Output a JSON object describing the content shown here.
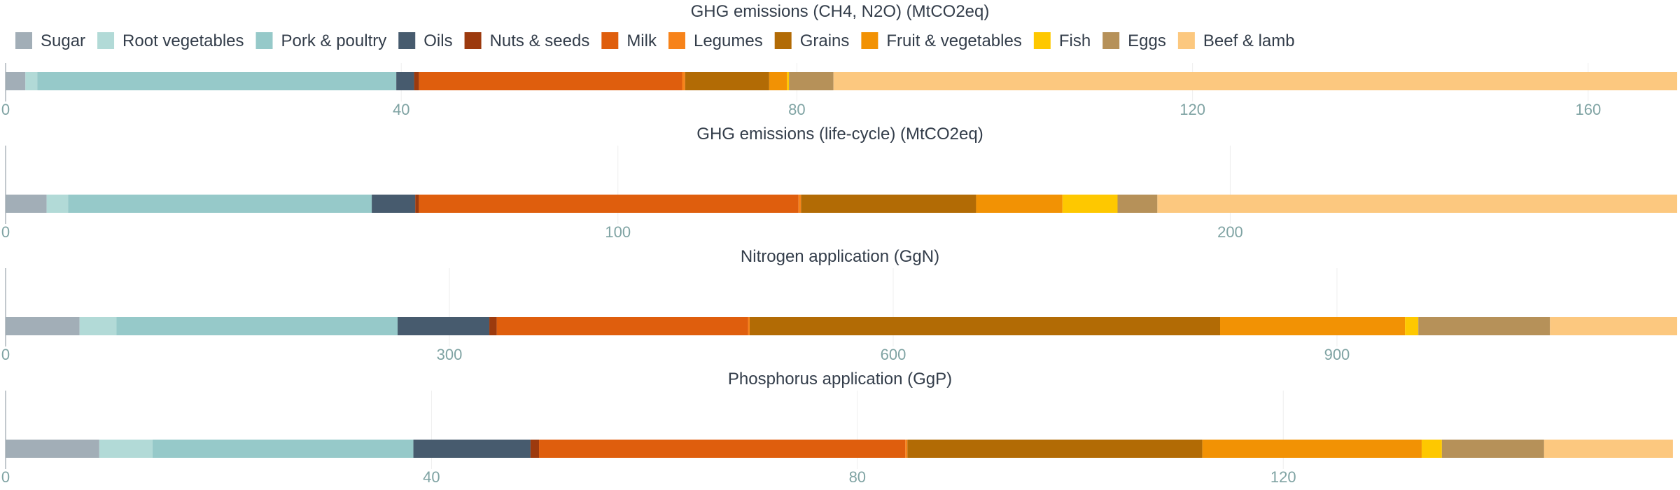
{
  "chart_data": {
    "type": "bar",
    "orientation": "horizontal",
    "stacked": true,
    "legend": {
      "placement": "top-left",
      "items": [
        {
          "name": "Sugar",
          "color": "#a2aeb7"
        },
        {
          "name": "Root vegetables",
          "color": "#b2dad7"
        },
        {
          "name": "Pork & poultry",
          "color": "#96c9c9"
        },
        {
          "name": "Oils",
          "color": "#475b6e"
        },
        {
          "name": "Nuts & seeds",
          "color": "#9c3a0e"
        },
        {
          "name": "Milk",
          "color": "#df5e0d"
        },
        {
          "name": "Legumes",
          "color": "#f7831a"
        },
        {
          "name": "Grains",
          "color": "#b26b05"
        },
        {
          "name": "Fruit & vegetables",
          "color": "#f29204"
        },
        {
          "name": "Fish",
          "color": "#fec800"
        },
        {
          "name": "Eggs",
          "color": "#b69159"
        },
        {
          "name": "Beef & lamb",
          "color": "#fcc87f"
        }
      ]
    },
    "grid": true,
    "panels": [
      {
        "title": "GHG emissions (CH4, N2O) (MtCO2eq)",
        "xlim": [
          0,
          169
        ],
        "ticks": [
          "0",
          "40",
          "80",
          "120",
          "160"
        ],
        "tick_values": [
          0,
          40,
          80,
          120,
          160
        ],
        "values": [
          2.0,
          1.2,
          36.3,
          1.8,
          0.5,
          26.6,
          0.3,
          8.5,
          1.8,
          0.2,
          4.5,
          85.3
        ]
      },
      {
        "title": "GHG emissions (life-cycle) (MtCO2eq)",
        "xlim": [
          0,
          273
        ],
        "ticks": [
          "0",
          "100",
          "200"
        ],
        "tick_values": [
          0,
          100,
          200
        ],
        "values": [
          6.7,
          3.5,
          49.6,
          7.1,
          0.6,
          62.0,
          0.4,
          28.6,
          14.1,
          9.0,
          6.5,
          84.9
        ]
      },
      {
        "title": "Nitrogen application (GgN)",
        "xlim": [
          0,
          1130
        ],
        "ticks": [
          "0",
          "300",
          "600",
          "900"
        ],
        "tick_values": [
          0,
          300,
          600,
          900
        ],
        "values": [
          50,
          25,
          190,
          62,
          5,
          170,
          1,
          318,
          125,
          9,
          89,
          86
        ]
      },
      {
        "title": "Phosphorus application (GgP)",
        "xlim": [
          0,
          157
        ],
        "ticks": [
          "0",
          "40",
          "80",
          "120"
        ],
        "tick_values": [
          0,
          40,
          80,
          120
        ],
        "values": [
          8.8,
          5.0,
          24.5,
          11.0,
          0.8,
          34.4,
          0.2,
          27.7,
          20.6,
          1.9,
          9.6,
          12.1
        ]
      }
    ]
  }
}
